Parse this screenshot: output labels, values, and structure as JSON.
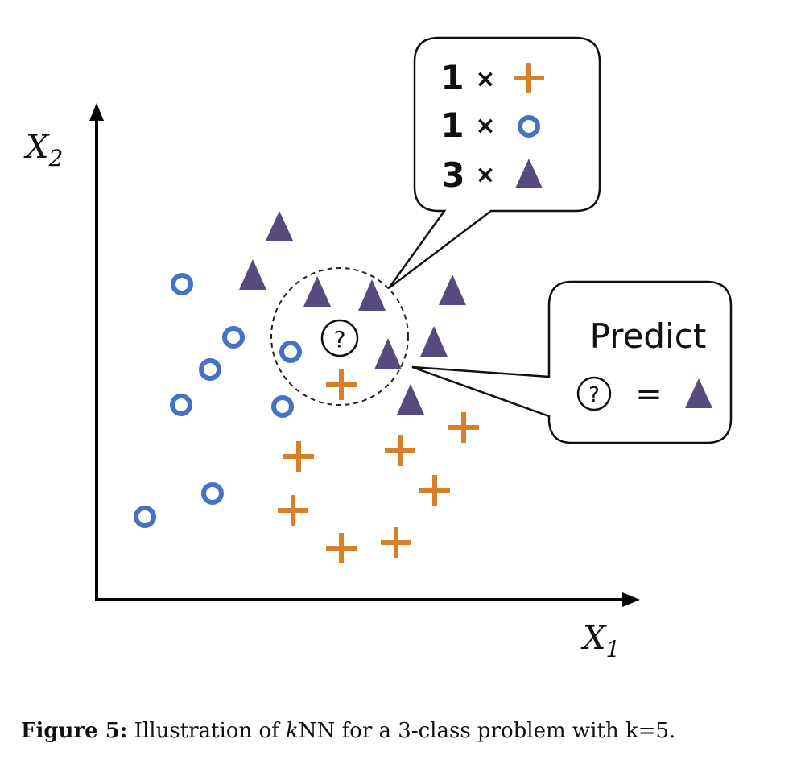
{
  "colors": {
    "circle_class": "#4472c4",
    "plus_class": "#d6802a",
    "triangle_class": "#574a7e",
    "axes": "#000000"
  },
  "axes": {
    "x_label": "X",
    "x_sub": "1",
    "y_label": "X",
    "y_sub": "2"
  },
  "query": {
    "symbol": "?"
  },
  "vote_box": {
    "rows": [
      {
        "count": "1",
        "times": "×",
        "marker": "plus-icon"
      },
      {
        "count": "1",
        "times": "×",
        "marker": "circle-icon"
      },
      {
        "count": "3",
        "times": "×",
        "marker": "triangle-icon"
      }
    ]
  },
  "predict_box": {
    "title": "Predict",
    "query_symbol": "?",
    "equals": "=",
    "result_marker": "triangle-icon"
  },
  "caption": {
    "label": "Figure 5:",
    "text_before": " Illustration of ",
    "k": "k",
    "text_after": "NN for a 3-class problem with k=5."
  }
}
